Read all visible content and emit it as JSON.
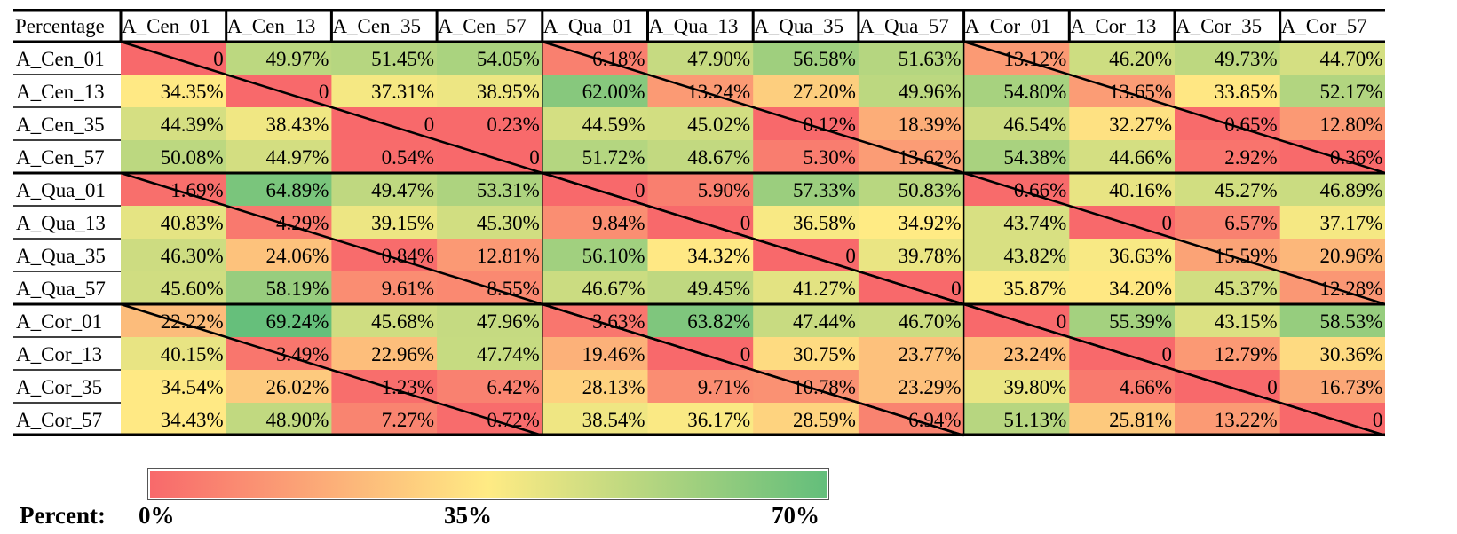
{
  "chart_data": {
    "type": "heatmap",
    "corner_label": "Percentage",
    "columns": [
      "A_Cen_01",
      "A_Cen_13",
      "A_Cen_35",
      "A_Cen_57",
      "A_Qua_01",
      "A_Qua_13",
      "A_Qua_35",
      "A_Qua_57",
      "A_Cor_01",
      "A_Cor_13",
      "A_Cor_35",
      "A_Cor_57"
    ],
    "rows": [
      "A_Cen_01",
      "A_Cen_13",
      "A_Cen_35",
      "A_Cen_57",
      "A_Qua_01",
      "A_Qua_13",
      "A_Qua_35",
      "A_Qua_57",
      "A_Cor_01",
      "A_Cor_13",
      "A_Cor_35",
      "A_Cor_57"
    ],
    "cells": [
      [
        "0",
        "49.97%",
        "51.45%",
        "54.05%",
        "6.18%",
        "47.90%",
        "56.58%",
        "51.63%",
        "13.12%",
        "46.20%",
        "49.73%",
        "44.70%"
      ],
      [
        "34.35%",
        "0",
        "37.31%",
        "38.95%",
        "62.00%",
        "13.24%",
        "27.20%",
        "49.96%",
        "54.80%",
        "13.65%",
        "33.85%",
        "52.17%"
      ],
      [
        "44.39%",
        "38.43%",
        "0",
        "0.23%",
        "44.59%",
        "45.02%",
        "0.12%",
        "18.39%",
        "46.54%",
        "32.27%",
        "0.65%",
        "12.80%"
      ],
      [
        "50.08%",
        "44.97%",
        "0.54%",
        "0",
        "51.72%",
        "48.67%",
        "5.30%",
        "13.62%",
        "54.38%",
        "44.66%",
        "2.92%",
        "0.36%"
      ],
      [
        "1.69%",
        "64.89%",
        "49.47%",
        "53.31%",
        "0",
        "5.90%",
        "57.33%",
        "50.83%",
        "0.66%",
        "40.16%",
        "45.27%",
        "46.89%"
      ],
      [
        "40.83%",
        "4.29%",
        "39.15%",
        "45.30%",
        "9.84%",
        "0",
        "36.58%",
        "34.92%",
        "43.74%",
        "0",
        "6.57%",
        "37.17%"
      ],
      [
        "46.30%",
        "24.06%",
        "0.84%",
        "12.81%",
        "56.10%",
        "34.32%",
        "0",
        "39.78%",
        "43.82%",
        "36.63%",
        "15.59%",
        "20.96%"
      ],
      [
        "45.60%",
        "58.19%",
        "9.61%",
        "8.55%",
        "46.67%",
        "49.45%",
        "41.27%",
        "0",
        "35.87%",
        "34.20%",
        "45.37%",
        "12.28%"
      ],
      [
        "22.22%",
        "69.24%",
        "45.68%",
        "47.96%",
        "3.63%",
        "63.82%",
        "47.44%",
        "46.70%",
        "0",
        "55.39%",
        "43.15%",
        "58.53%"
      ],
      [
        "40.15%",
        "3.49%",
        "22.96%",
        "47.74%",
        "19.46%",
        "0",
        "30.75%",
        "23.77%",
        "23.24%",
        "0",
        "12.79%",
        "30.36%"
      ],
      [
        "34.54%",
        "26.02%",
        "1.23%",
        "6.42%",
        "28.13%",
        "9.71%",
        "10.78%",
        "23.29%",
        "39.80%",
        "4.66%",
        "0",
        "16.73%"
      ],
      [
        "34.43%",
        "48.90%",
        "7.27%",
        "0.72%",
        "38.54%",
        "36.17%",
        "28.59%",
        "6.94%",
        "51.13%",
        "25.81%",
        "13.22%",
        "0"
      ]
    ],
    "color_scale": {
      "min": 0,
      "mid": 35,
      "max": 70,
      "min_color": "#f8696b",
      "mid_color": "#ffeb84",
      "max_color": "#63be7b"
    },
    "legend": {
      "label": "Percent:",
      "ticks": [
        "0%",
        "35%",
        "70%"
      ]
    },
    "diagonal_lines": true
  }
}
